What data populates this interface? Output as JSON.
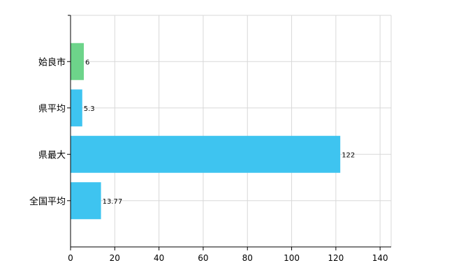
{
  "chart_data": {
    "type": "bar",
    "orientation": "horizontal",
    "categories": [
      "姶良市",
      "県平均",
      "県最大",
      "全国平均"
    ],
    "values": [
      6,
      5.3,
      122,
      13.77
    ],
    "value_labels": [
      "6",
      "5.3",
      "122",
      "13.77"
    ],
    "bar_colors": [
      "#6dd48a",
      "#3ec4f0",
      "#3ec4f0",
      "#3ec4f0"
    ],
    "xlim": [
      0,
      145
    ],
    "x_ticks": [
      0,
      20,
      40,
      60,
      80,
      100,
      120,
      140
    ],
    "grid": true,
    "legend": "none",
    "title": "",
    "xlabel": "",
    "ylabel": ""
  },
  "colors": {
    "highlight": "#6dd48a",
    "default_bar": "#3ec4f0",
    "grid": "#d8d8d8",
    "axis": "#000000"
  }
}
